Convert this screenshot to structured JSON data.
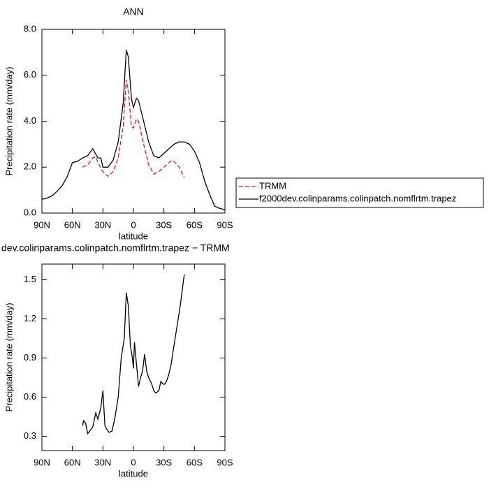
{
  "chart_data": [
    {
      "type": "line",
      "title": "ANN",
      "xlabel": "latitude",
      "ylabel": "Precipitation rate (mm/day)",
      "xlim": [
        90,
        -90
      ],
      "xticks": [
        {
          "value": 90,
          "label": "90N"
        },
        {
          "value": 60,
          "label": "60N"
        },
        {
          "value": 30,
          "label": "30N"
        },
        0,
        {
          "value": -30,
          "label": "30S"
        },
        {
          "value": -60,
          "label": "60S"
        },
        {
          "value": -90,
          "label": "90S"
        }
      ],
      "ylim": [
        0,
        8
      ],
      "yticks": [
        {
          "value": 0,
          "label": "0.0"
        },
        {
          "value": 2,
          "label": "2.0"
        },
        {
          "value": 4,
          "label": "4.0"
        },
        {
          "value": 6,
          "label": "6.0"
        },
        {
          "value": 8,
          "label": "8.0"
        }
      ],
      "legend": "outside-right",
      "series": [
        {
          "name": "TRMM",
          "color": "#e8141e",
          "dashed": true,
          "x": [
            50,
            45,
            40,
            37,
            35,
            30,
            25,
            20,
            15,
            10,
            7,
            5,
            2,
            0,
            -3,
            -5,
            -10,
            -15,
            -20,
            -25,
            -30,
            -35,
            -38,
            -40,
            -45,
            -50
          ],
          "values": [
            2.0,
            2.1,
            2.4,
            2.45,
            2.2,
            1.8,
            1.6,
            1.8,
            2.4,
            3.8,
            5.8,
            5.3,
            3.8,
            3.7,
            4.1,
            4.0,
            3.0,
            2.1,
            1.7,
            1.8,
            2.0,
            2.2,
            2.3,
            2.25,
            2.0,
            1.55
          ]
        },
        {
          "name": "f2000dev.colinparams.colinpatch.nomflrtm.trapez",
          "color": "#000000",
          "dashed": false,
          "x": [
            90,
            85,
            80,
            75,
            70,
            65,
            60,
            55,
            50,
            45,
            40,
            35,
            32,
            30,
            25,
            20,
            15,
            10,
            7,
            5,
            2,
            0,
            -3,
            -5,
            -10,
            -15,
            -20,
            -25,
            -30,
            -35,
            -40,
            -45,
            -50,
            -55,
            -60,
            -65,
            -70,
            -75,
            -80,
            -85,
            -90
          ],
          "values": [
            0.6,
            0.65,
            0.75,
            0.95,
            1.2,
            1.6,
            2.2,
            2.25,
            2.4,
            2.5,
            2.8,
            2.4,
            2.4,
            2.0,
            2.0,
            2.3,
            3.1,
            4.8,
            7.1,
            6.8,
            5.0,
            4.6,
            5.0,
            4.9,
            4.0,
            3.1,
            2.5,
            2.4,
            2.6,
            2.8,
            3.0,
            3.1,
            3.1,
            3.0,
            2.7,
            2.2,
            1.4,
            0.8,
            0.3,
            0.2,
            0.15
          ]
        }
      ]
    },
    {
      "type": "line",
      "title": "dev.colinparams.colinpatch.nomflrtm.trapez − TRMM",
      "xlabel": "latitude",
      "ylabel": "Precipitation rate (mm/day)",
      "xlim": [
        90,
        -90
      ],
      "xticks": [
        {
          "value": 90,
          "label": "90N"
        },
        {
          "value": 60,
          "label": "60N"
        },
        {
          "value": 30,
          "label": "30N"
        },
        0,
        {
          "value": -30,
          "label": "30S"
        },
        {
          "value": -60,
          "label": "60S"
        },
        {
          "value": -90,
          "label": "90S"
        }
      ],
      "ylim": [
        0.19,
        1.62
      ],
      "yticks": [
        0.3,
        0.6,
        0.9,
        1.2,
        1.5
      ],
      "series": [
        {
          "color": "#000000",
          "dashed": false,
          "x": [
            50,
            49,
            47,
            45,
            42,
            40,
            37,
            35,
            32,
            30,
            28,
            26,
            24,
            21,
            18,
            15,
            12,
            9,
            7,
            5,
            3,
            1,
            0,
            -1,
            -3,
            -5,
            -7,
            -9,
            -11,
            -13,
            -15,
            -18,
            -20,
            -22,
            -25,
            -27,
            -29,
            -31,
            -33,
            -35,
            -37,
            -40,
            -43,
            -46,
            -50
          ],
          "values": [
            0.38,
            0.42,
            0.4,
            0.32,
            0.35,
            0.37,
            0.48,
            0.43,
            0.52,
            0.65,
            0.38,
            0.35,
            0.33,
            0.34,
            0.45,
            0.6,
            0.9,
            1.05,
            1.4,
            1.3,
            1.0,
            0.9,
            0.82,
            1.02,
            0.85,
            0.68,
            0.75,
            0.8,
            0.93,
            0.8,
            0.75,
            0.7,
            0.65,
            0.63,
            0.65,
            0.72,
            0.7,
            0.7,
            0.73,
            0.78,
            0.85,
            1.0,
            1.15,
            1.3,
            1.54
          ]
        }
      ]
    }
  ]
}
